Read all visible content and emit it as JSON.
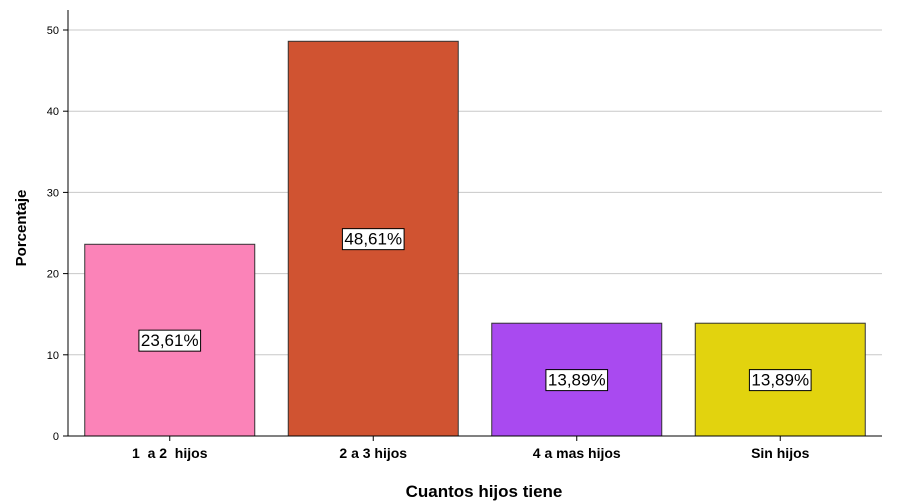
{
  "chart_data": {
    "type": "bar",
    "xlabel": "Cuantos hijos tiene",
    "ylabel": "Porcentaje",
    "ylim": [
      0,
      50
    ],
    "yticks": [
      "0",
      "10",
      "20",
      "30",
      "40",
      "50"
    ],
    "grid": true,
    "categories": [
      "1  a 2  hijos",
      "2 a 3 hijos",
      "4 a mas hijos",
      "Sin hijos"
    ],
    "values": [
      23.61,
      48.61,
      13.89,
      13.89
    ],
    "data_labels": [
      "23,61%",
      "48,61%",
      "13,89%",
      "13,89%"
    ],
    "colors": [
      "#fb83b8",
      "#d05331",
      "#a94af0",
      "#e2d30e"
    ]
  }
}
